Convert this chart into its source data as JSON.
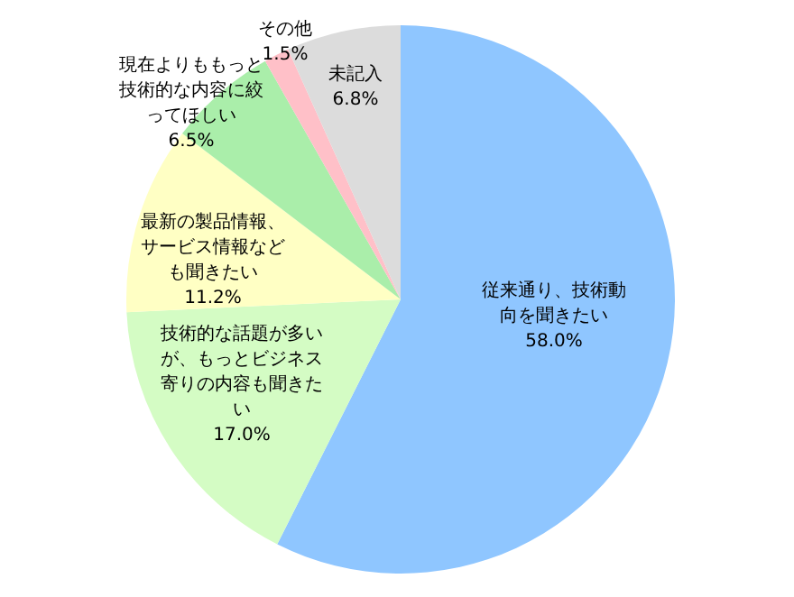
{
  "chart_data": {
    "type": "pie",
    "categories": [
      "従来通り、技術動向を聞きたい",
      "技術的な話題が多いが、もっとビジネス寄りの内容も聞きたい",
      "最新の製品情報、サービス情報なども聞きたい",
      "現在よりももっと技術的な内容に絞ってほしい",
      "その他",
      "未記入"
    ],
    "values": [
      58.0,
      17.0,
      11.2,
      6.5,
      1.5,
      6.8
    ],
    "colors": [
      "#8fc6ff",
      "#d4fcc4",
      "#ffffc4",
      "#aaeeaa",
      "#ffc0c8",
      "#dcdcdc"
    ],
    "value_labels": [
      "58.0%",
      "17.0%",
      "11.2%",
      "6.5%",
      "1.5%",
      "6.8%"
    ],
    "legend": false
  }
}
